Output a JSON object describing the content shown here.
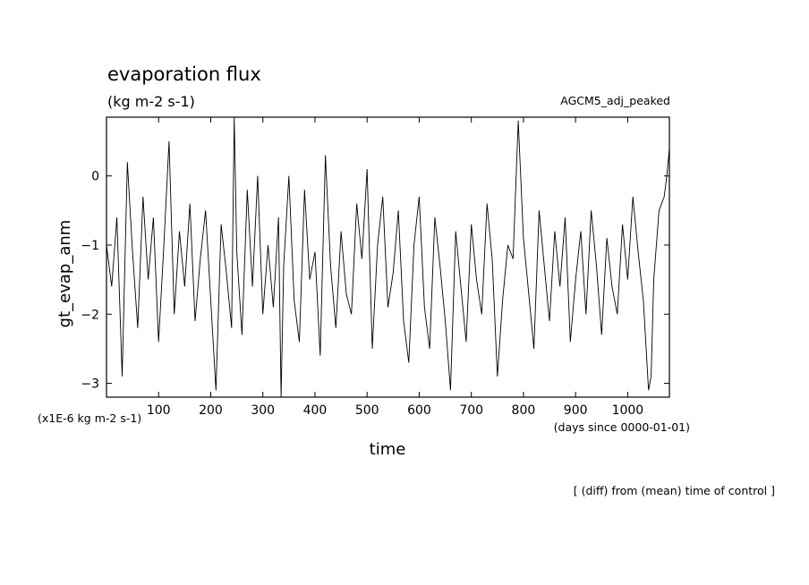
{
  "chart_data": {
    "type": "line",
    "title": "evaporation flux",
    "units": "(kg m-2 s-1)",
    "experiment": "AGCM5_adj_peaked",
    "xlabel": "time",
    "ylabel": "gt_evap_anm",
    "x_unit_note": "(days since 0000-01-01)",
    "y_scale_note": "(x1E-6 kg m-2 s-1)",
    "footnote": "[ (diff) from (mean) time of control ]",
    "xlim": [
      0,
      1080
    ],
    "ylim": [
      -3.2,
      0.85
    ],
    "x_ticks": [
      100,
      200,
      300,
      400,
      500,
      600,
      700,
      800,
      900,
      1000
    ],
    "x_tick_labels": [
      "100",
      "200",
      "300",
      "400",
      "500",
      "600",
      "700",
      "800",
      "900",
      "1000"
    ],
    "y_ticks": [
      0,
      -1,
      -2,
      -3
    ],
    "y_tick_labels": [
      "0",
      "−1",
      "−2",
      "−3"
    ],
    "series": [
      {
        "x": [
          0,
          10,
          20,
          30,
          40,
          50,
          60,
          70,
          80,
          90,
          100,
          110,
          120,
          130,
          140,
          150,
          160,
          170,
          180,
          190,
          200,
          210,
          220,
          230,
          240,
          245,
          250,
          260,
          270,
          280,
          290,
          300,
          310,
          320,
          330,
          335,
          340,
          350,
          360,
          370,
          380,
          390,
          400,
          410,
          420,
          430,
          440,
          450,
          460,
          470,
          480,
          490,
          500,
          510,
          520,
          530,
          540,
          550,
          560,
          570,
          580,
          590,
          600,
          610,
          620,
          630,
          640,
          650,
          660,
          670,
          680,
          690,
          700,
          710,
          720,
          730,
          740,
          750,
          760,
          770,
          780,
          790,
          800,
          810,
          820,
          830,
          840,
          850,
          860,
          870,
          880,
          890,
          900,
          910,
          920,
          930,
          940,
          950,
          960,
          970,
          980,
          990,
          1000,
          1010,
          1020,
          1030,
          1040,
          1045,
          1050,
          1060,
          1070,
          1075,
          1080
        ],
        "y": [
          -1.0,
          -1.6,
          -0.6,
          -2.9,
          0.2,
          -1.1,
          -2.2,
          -0.3,
          -1.5,
          -0.6,
          -2.4,
          -1.0,
          0.5,
          -2.0,
          -0.8,
          -1.6,
          -0.4,
          -2.1,
          -1.2,
          -0.5,
          -1.8,
          -3.1,
          -0.7,
          -1.4,
          -2.2,
          0.85,
          -1.1,
          -2.3,
          -0.2,
          -1.6,
          0.0,
          -2.0,
          -1.0,
          -1.9,
          -0.6,
          -3.2,
          -1.3,
          0.0,
          -1.8,
          -2.4,
          -0.2,
          -1.5,
          -1.1,
          -2.6,
          0.3,
          -1.3,
          -2.2,
          -0.8,
          -1.7,
          -2.0,
          -0.4,
          -1.2,
          0.1,
          -2.5,
          -1.0,
          -0.3,
          -1.9,
          -1.4,
          -0.5,
          -2.1,
          -2.7,
          -1.0,
          -0.3,
          -1.9,
          -2.5,
          -0.6,
          -1.3,
          -2.1,
          -3.1,
          -0.8,
          -1.6,
          -2.4,
          -0.7,
          -1.5,
          -2.0,
          -0.4,
          -1.2,
          -2.9,
          -1.8,
          -1.0,
          -1.2,
          0.8,
          -0.9,
          -1.7,
          -2.5,
          -0.5,
          -1.3,
          -2.1,
          -0.8,
          -1.6,
          -0.6,
          -2.4,
          -1.5,
          -0.8,
          -2.0,
          -0.5,
          -1.3,
          -2.3,
          -0.9,
          -1.6,
          -2.0,
          -0.7,
          -1.5,
          -0.3,
          -1.1,
          -1.8,
          -3.1,
          -2.9,
          -1.5,
          -0.5,
          -0.3,
          0.0,
          0.4
        ]
      }
    ]
  }
}
